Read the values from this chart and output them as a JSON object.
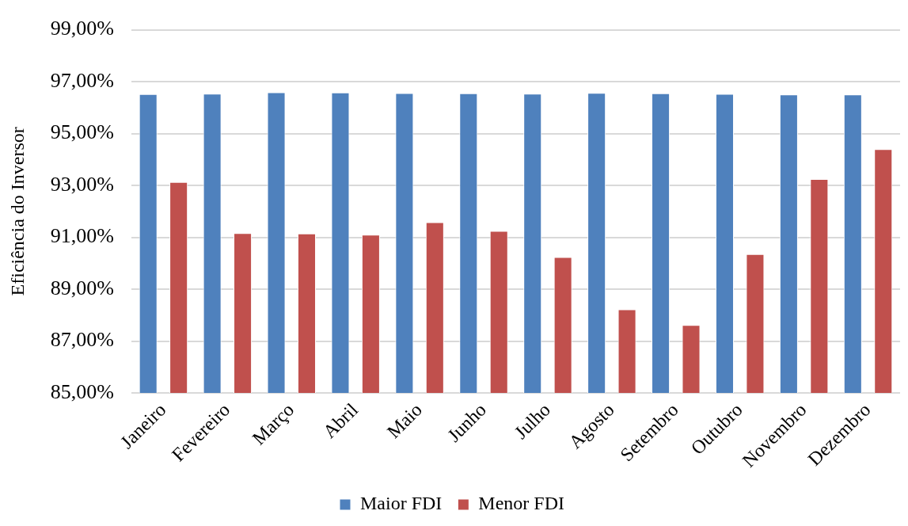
{
  "chart_data": {
    "type": "bar",
    "ylabel": "Eficiência do Inversor",
    "categories": [
      "Janeiro",
      "Fevereiro",
      "Março",
      "Abril",
      "Maio",
      "Junho",
      "Julho",
      "Agosto",
      "Setembro",
      "Outubro",
      "Novembro",
      "Dezembro"
    ],
    "series": [
      {
        "name": "Maior FDI",
        "color": "#4f81bd",
        "values": [
          96.52,
          96.54,
          96.59,
          96.58,
          96.56,
          96.55,
          96.54,
          96.57,
          96.55,
          96.53,
          96.51,
          96.51
        ]
      },
      {
        "name": "Menor FDI",
        "color": "#c0504d",
        "values": [
          93.13,
          91.16,
          91.15,
          91.1,
          91.58,
          91.25,
          90.24,
          88.22,
          87.62,
          90.35,
          93.25,
          94.4
        ]
      }
    ],
    "ylim": [
      85,
      99
    ],
    "yticks": [
      {
        "value": 85,
        "label": "85,00%"
      },
      {
        "value": 87,
        "label": "87,00%"
      },
      {
        "value": 89,
        "label": "89,00%"
      },
      {
        "value": 91,
        "label": "91,00%"
      },
      {
        "value": 93,
        "label": "93,00%"
      },
      {
        "value": 95,
        "label": "95,00%"
      },
      {
        "value": 97,
        "label": "97,00%"
      },
      {
        "value": 99,
        "label": "99,00%"
      }
    ],
    "grid": "y",
    "legend": "bottom"
  }
}
